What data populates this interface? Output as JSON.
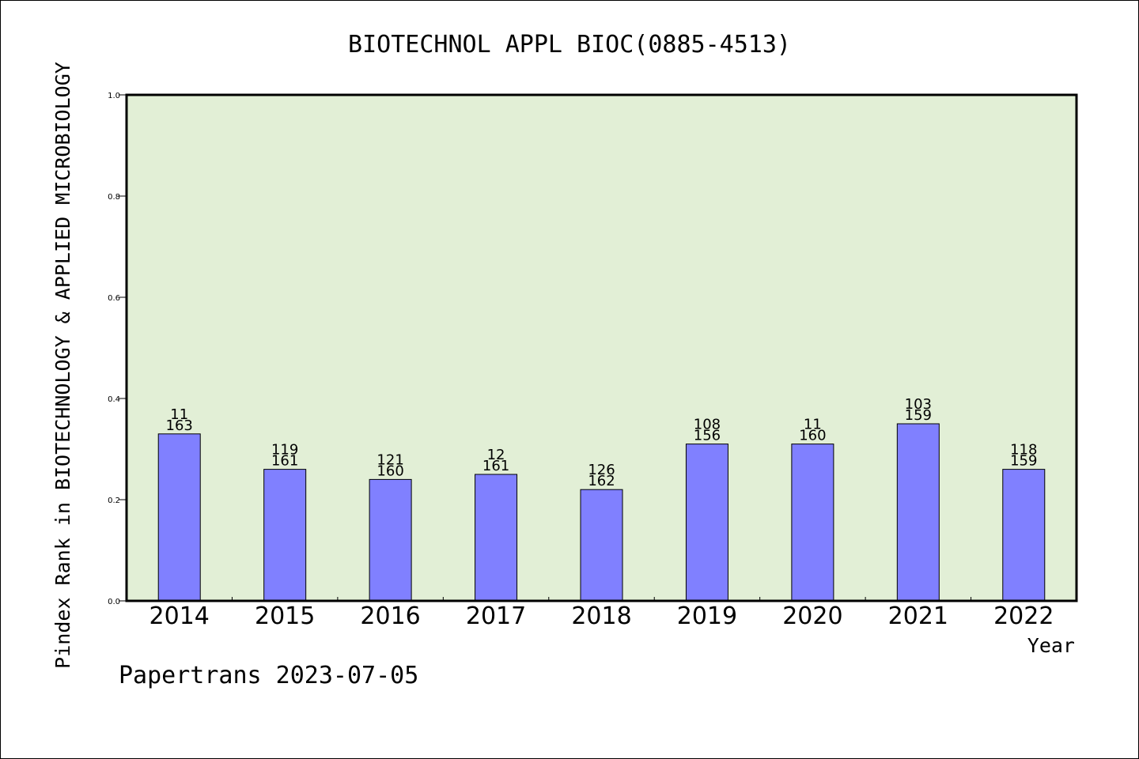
{
  "chart_data": {
    "type": "bar",
    "title": "BIOTECHNOL APPL BIOC(0885-4513)",
    "xlabel": "Year",
    "ylabel": "Pindex Rank in BIOTECHNOLOGY & APPLIED MICROBIOLOGY",
    "ylim": [
      0,
      1.0
    ],
    "yticks": [
      "0.0",
      "0.2",
      "0.4",
      "0.6",
      "0.8",
      "1.0"
    ],
    "grid": false,
    "categories": [
      "2014",
      "2015",
      "2016",
      "2017",
      "2018",
      "2019",
      "2020",
      "2021",
      "2022"
    ],
    "values": [
      0.33,
      0.26,
      0.24,
      0.25,
      0.22,
      0.31,
      0.31,
      0.35,
      0.26
    ],
    "rank": [
      "11",
      "119",
      "121",
      "12",
      "126",
      "108",
      "11",
      "103",
      "118"
    ],
    "total": [
      "163",
      "161",
      "160",
      "161",
      "162",
      "156",
      "160",
      "159",
      "159"
    ],
    "colors": {
      "bar": "#8080ff",
      "plot_bg": "#e2efd6",
      "axis": "#000000"
    }
  },
  "footer": {
    "text": "Papertrans 2023-07-05"
  }
}
